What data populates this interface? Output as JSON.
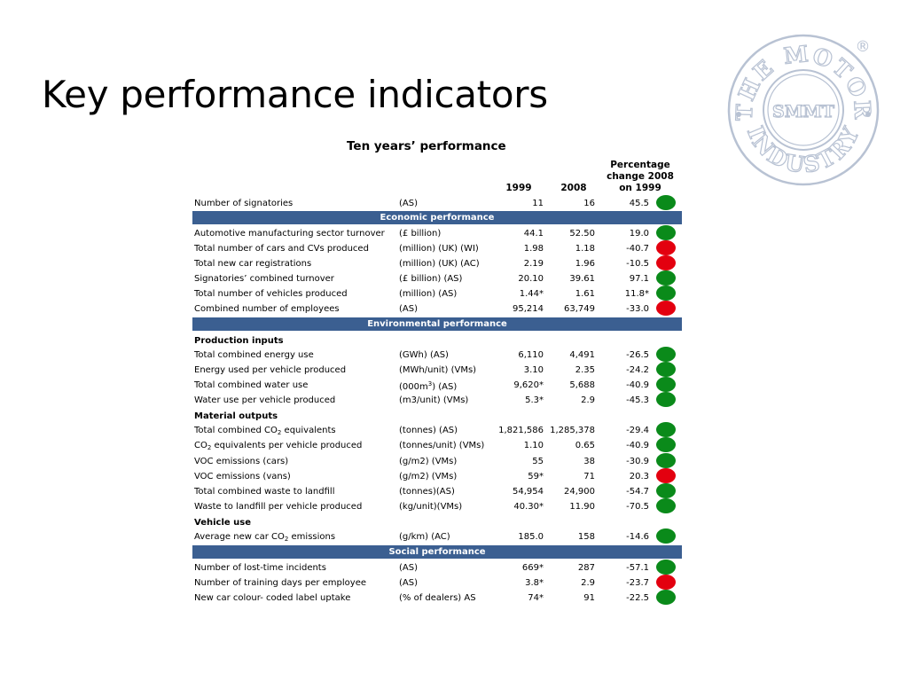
{
  "title": "Key performance indicators",
  "logo": {
    "top_text": "THE MOTOR",
    "bottom_text": "INDUSTRY",
    "center_text": "SMMT",
    "mark": "®",
    "color": "#b8c2d3"
  },
  "table": {
    "title": "Ten years’ performance",
    "headers": {
      "y1999": "1999",
      "y2008": "2008",
      "pct": "Percentage change 2008 on 1999"
    },
    "status_colors": {
      "green": "#0a8a1a",
      "red": "#e3000f"
    },
    "band_color": "#3b5f91",
    "rows": [
      {
        "name": "Number of signatories",
        "unit": "(AS)",
        "v1999": "11",
        "v2008": "16",
        "pct": "45.5",
        "status": "green"
      },
      {
        "band": "Economic performance"
      },
      {
        "name": "Automotive manufacturing sector turnover",
        "unit": "(£ billion)",
        "v1999": "44.1",
        "v2008": "52.50",
        "pct": "19.0",
        "status": "green"
      },
      {
        "name": "Total number of cars and CVs produced",
        "unit": "(million) (UK) (WI)",
        "v1999": "1.98",
        "v2008": "1.18",
        "pct": "-40.7",
        "status": "red"
      },
      {
        "name": "Total new car registrations",
        "unit": "(million) (UK) (AC)",
        "v1999": "2.19",
        "v2008": "1.96",
        "pct": "-10.5",
        "status": "red"
      },
      {
        "name": "Signatories’ combined turnover",
        "unit": "(£ billion) (AS)",
        "v1999": "20.10",
        "v2008": "39.61",
        "pct": "97.1",
        "status": "green"
      },
      {
        "name": "Total number of vehicles produced",
        "unit": "(million) (AS)",
        "v1999": "1.44*",
        "v2008": "1.61",
        "pct": "11.8*",
        "status": "green"
      },
      {
        "name": "Combined number of employees",
        "unit": "(AS)",
        "v1999": "95,214",
        "v2008": "63,749",
        "pct": "-33.0",
        "status": "red"
      },
      {
        "band": "Environmental performance"
      },
      {
        "subhead": "Production inputs"
      },
      {
        "name": "Total combined energy use",
        "unit": "(GWh) (AS)",
        "v1999": "6,110",
        "v2008": "4,491",
        "pct": "-26.5",
        "status": "green"
      },
      {
        "name": "Energy used per vehicle produced",
        "unit": "(MWh/unit) (VMs)",
        "v1999": "3.10",
        "v2008": "2.35",
        "pct": "-24.2",
        "status": "green"
      },
      {
        "name": "Total combined water use",
        "unit_pre": "(000m",
        "unit_sup": "3",
        "unit_post": ") (AS)",
        "v1999": "9,620*",
        "v2008": "5,688",
        "pct": "-40.9",
        "status": "green"
      },
      {
        "name": "Water use per vehicle produced",
        "unit": "(m3/unit) (VMs)",
        "v1999": "5.3*",
        "v2008": "2.9",
        "pct": "-45.3",
        "status": "green"
      },
      {
        "subhead": "Material outputs"
      },
      {
        "name_pre": "Total combined CO",
        "name_sub": "2",
        "name_post": " equivalents",
        "unit": "(tonnes) (AS)",
        "v1999": "1,821,586",
        "v2008": "1,285,378",
        "pct": "-29.4",
        "status": "green"
      },
      {
        "name_pre": "CO",
        "name_sub": "2",
        "name_post": " equivalents per vehicle produced",
        "unit": "(tonnes/unit) (VMs)",
        "v1999": "1.10",
        "v2008": "0.65",
        "pct": "-40.9",
        "status": "green"
      },
      {
        "name": "VOC emissions (cars)",
        "unit": "(g/m2) (VMs)",
        "v1999": "55",
        "v2008": "38",
        "pct": "-30.9",
        "status": "green"
      },
      {
        "name": "VOC emissions (vans)",
        "unit": "(g/m2) (VMs)",
        "v1999": "59*",
        "v2008": "71",
        "pct": "20.3",
        "status": "red"
      },
      {
        "name": "Total combined waste to landfill",
        "unit": "(tonnes)(AS)",
        "v1999": "54,954",
        "v2008": "24,900",
        "pct": "-54.7",
        "status": "green"
      },
      {
        "name": "Waste to landfill per vehicle produced",
        "unit": "(kg/unit)(VMs)",
        "v1999": "40.30*",
        "v2008": "11.90",
        "pct": "-70.5",
        "status": "green"
      },
      {
        "subhead": "Vehicle use"
      },
      {
        "name_pre": "Average new car CO",
        "name_sub": "2",
        "name_post": " emissions",
        "unit": "(g/km) (AC)",
        "v1999": "185.0",
        "v2008": "158",
        "pct": "-14.6",
        "status": "green"
      },
      {
        "band": "Social performance"
      },
      {
        "name": "Number of lost-time incidents",
        "unit": "(AS)",
        "v1999": "669*",
        "v2008": "287",
        "pct": "-57.1",
        "status": "green"
      },
      {
        "name": "Number of training days per employee",
        "unit": "(AS)",
        "v1999": "3.8*",
        "v2008": "2.9",
        "pct": "-23.7",
        "status": "red"
      },
      {
        "name": "New car colour- coded label uptake",
        "unit": "(% of dealers) AS",
        "v1999": "74*",
        "v2008": "91",
        "pct": "-22.5",
        "status": "green"
      }
    ]
  }
}
